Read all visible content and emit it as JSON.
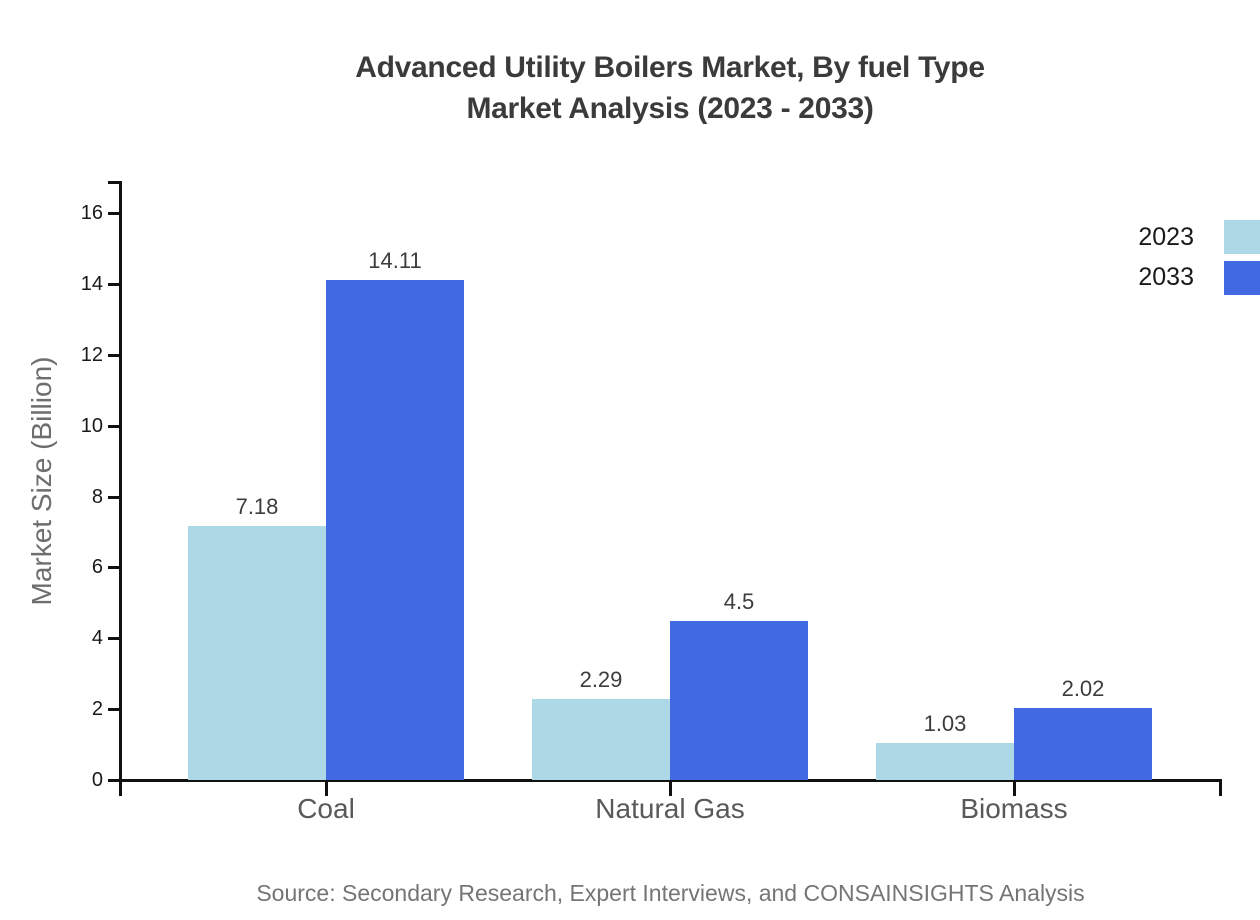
{
  "title": {
    "line1": "Advanced Utility Boilers Market, By fuel Type",
    "line2": "Market Analysis (2023 - 2033)"
  },
  "ylabel": "Market Size (Billion)",
  "source": "Source: Secondary Research, Expert Interviews, and CONSAINSIGHTS Analysis",
  "legend": {
    "position": "top-right",
    "items": [
      {
        "label": "2023",
        "color": "#ADD8E6"
      },
      {
        "label": "2033",
        "color": "#4169E1"
      }
    ]
  },
  "colors": {
    "bar_2023": "#ADD8E6",
    "bar_2033": "#4169E1",
    "axis": "#111111",
    "title_text": "#3b3b3b",
    "category_text": "#595959",
    "tick_text": "#1a1a1a",
    "value_text": "#3d3d3d",
    "ylabel_text": "#6e6e6e",
    "source_text": "#757575",
    "background": "#ffffff"
  },
  "chart_data": {
    "type": "bar",
    "title": "Advanced Utility Boilers Market, By fuel Type Market Analysis (2023 - 2033)",
    "categories": [
      "Coal",
      "Natural Gas",
      "Biomass"
    ],
    "series": [
      {
        "name": "2023",
        "color": "#ADD8E6",
        "values": [
          7.18,
          2.29,
          1.03
        ],
        "value_labels": [
          "7.18",
          "2.29",
          "1.03"
        ]
      },
      {
        "name": "2033",
        "color": "#4169E1",
        "values": [
          14.11,
          4.5,
          2.02
        ],
        "value_labels": [
          "14.11",
          "4.5",
          "2.02"
        ]
      }
    ],
    "xlabel": "",
    "ylabel": "Market Size (Billion)",
    "ylim": [
      0,
      16.9
    ],
    "yticks": [
      0,
      2,
      4,
      6,
      8,
      10,
      12,
      14,
      16
    ],
    "grid": false,
    "legend_position": "top-right",
    "value_labels_shown": true
  }
}
